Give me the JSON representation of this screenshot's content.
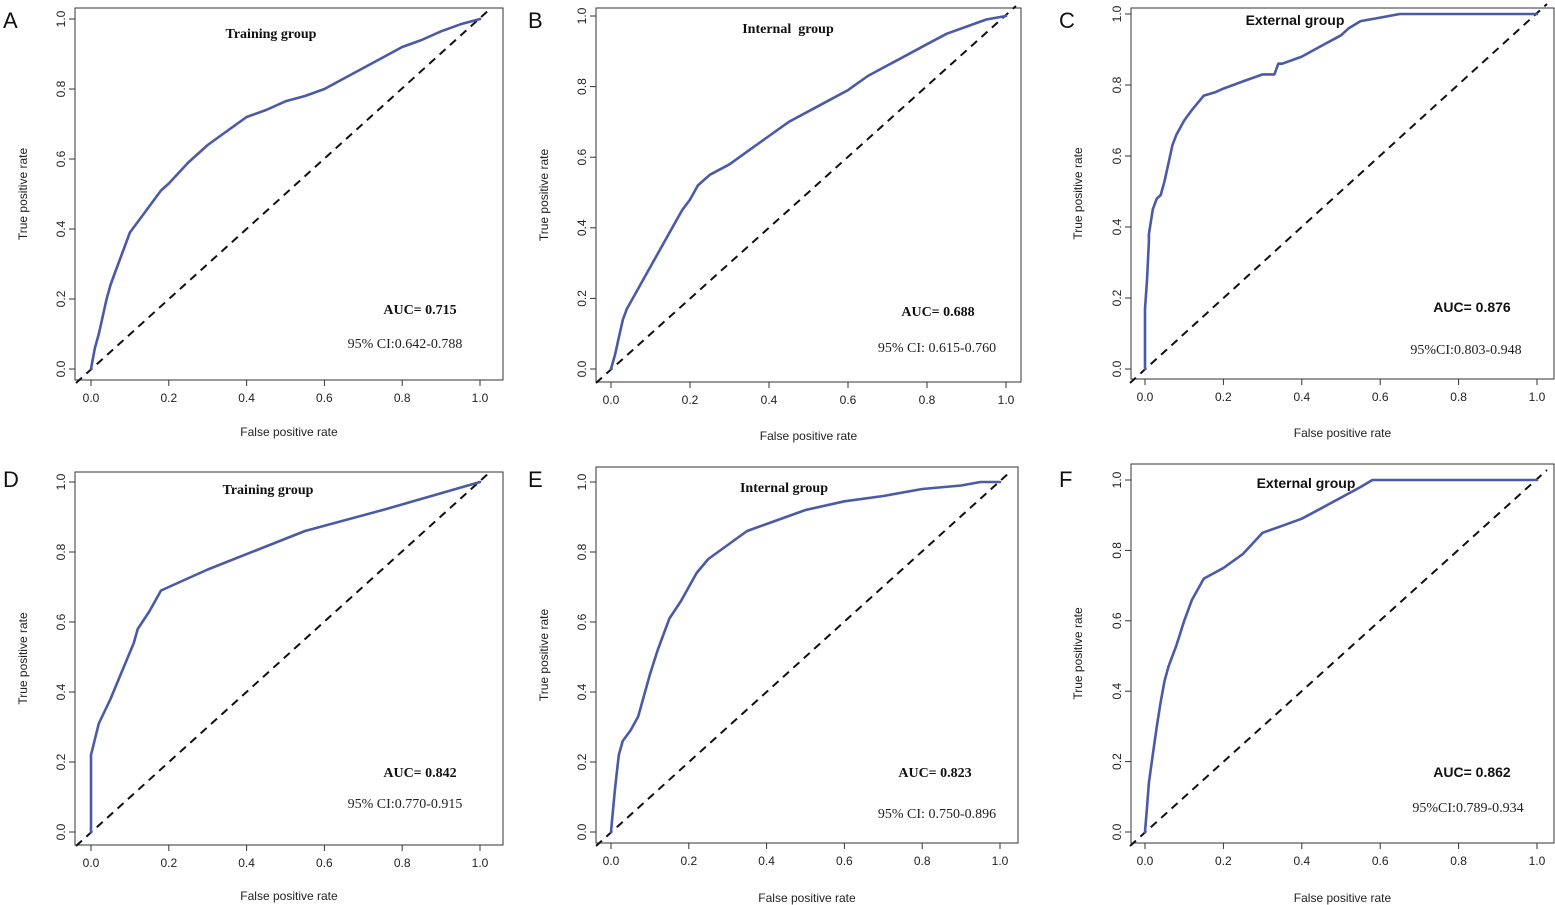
{
  "colors": {
    "roc": "#4a5aa8",
    "diagonal": "#111111",
    "frame": "#333333"
  },
  "chart_data": [
    {
      "type": "line",
      "panel": "A",
      "title": "Training group",
      "xlabel": "False positive rate",
      "ylabel": "True positive rate",
      "xlim": [
        0,
        1
      ],
      "ylim": [
        0,
        1
      ],
      "xticks": [
        "0.0",
        "0.2",
        "0.4",
        "0.6",
        "0.8",
        "1.0"
      ],
      "yticks": [
        "0.0",
        "0.2",
        "0.4",
        "0.6",
        "0.8",
        "1.0"
      ],
      "auc_label": "AUC=",
      "auc_value": "0.715",
      "ci": "95% CI:0.642-0.788",
      "series": [
        {
          "name": "ROC",
          "x": [
            0,
            0.005,
            0.01,
            0.02,
            0.03,
            0.04,
            0.05,
            0.06,
            0.07,
            0.08,
            0.09,
            0.1,
            0.12,
            0.14,
            0.16,
            0.18,
            0.2,
            0.25,
            0.3,
            0.35,
            0.4,
            0.45,
            0.5,
            0.55,
            0.6,
            0.65,
            0.7,
            0.75,
            0.8,
            0.85,
            0.9,
            0.95,
            1.0
          ],
          "y": [
            0,
            0.03,
            0.06,
            0.1,
            0.15,
            0.2,
            0.24,
            0.27,
            0.3,
            0.33,
            0.36,
            0.39,
            0.42,
            0.45,
            0.48,
            0.51,
            0.53,
            0.59,
            0.64,
            0.68,
            0.72,
            0.74,
            0.765,
            0.78,
            0.8,
            0.83,
            0.86,
            0.89,
            0.92,
            0.94,
            0.965,
            0.985,
            1.0
          ]
        },
        {
          "name": "Reference",
          "x": [
            0,
            1
          ],
          "y": [
            0,
            1
          ]
        }
      ]
    },
    {
      "type": "line",
      "panel": "B",
      "title": "Internal  group",
      "xlabel": "False positive rate",
      "ylabel": "True positive rate",
      "xlim": [
        0,
        1
      ],
      "ylim": [
        0,
        1
      ],
      "xticks": [
        "0.0",
        "0.2",
        "0.4",
        "0.6",
        "0.8",
        "1.0"
      ],
      "yticks": [
        "0.0",
        "0.2",
        "0.4",
        "0.6",
        "0.8",
        "1.0"
      ],
      "auc_label": "AUC=",
      "auc_value": "0.688",
      "ci": "95% CI: 0.615-0.760",
      "series": [
        {
          "name": "ROC",
          "x": [
            0,
            0.005,
            0.01,
            0.02,
            0.03,
            0.04,
            0.05,
            0.06,
            0.08,
            0.1,
            0.12,
            0.14,
            0.16,
            0.18,
            0.2,
            0.22,
            0.25,
            0.3,
            0.35,
            0.4,
            0.45,
            0.5,
            0.55,
            0.6,
            0.65,
            0.7,
            0.75,
            0.8,
            0.85,
            0.9,
            0.95,
            1.0
          ],
          "y": [
            0,
            0.02,
            0.04,
            0.09,
            0.14,
            0.17,
            0.19,
            0.21,
            0.25,
            0.29,
            0.33,
            0.37,
            0.41,
            0.45,
            0.48,
            0.52,
            0.55,
            0.58,
            0.62,
            0.66,
            0.7,
            0.73,
            0.76,
            0.79,
            0.83,
            0.86,
            0.89,
            0.92,
            0.95,
            0.97,
            0.99,
            1.0
          ]
        },
        {
          "name": "Reference",
          "x": [
            0,
            1
          ],
          "y": [
            0,
            1
          ]
        }
      ]
    },
    {
      "type": "line",
      "panel": "C",
      "title": "External group",
      "xlabel": "False positive rate",
      "ylabel": "True positive rate",
      "xlim": [
        0,
        1
      ],
      "ylim": [
        0,
        1
      ],
      "xticks": [
        "0.0",
        "0.2",
        "0.4",
        "0.6",
        "0.8",
        "1.0"
      ],
      "yticks": [
        "0.0",
        "0.2",
        "0.4",
        "0.6",
        "0.8",
        "1.0"
      ],
      "auc_label": "AUC=",
      "auc_value": "0.876",
      "ci": "95%CI:0.803-0.948",
      "series": [
        {
          "name": "ROC",
          "x": [
            0,
            0,
            0.005,
            0.01,
            0.01,
            0.02,
            0.03,
            0.04,
            0.05,
            0.06,
            0.07,
            0.08,
            0.09,
            0.1,
            0.12,
            0.15,
            0.18,
            0.2,
            0.25,
            0.3,
            0.33,
            0.34,
            0.35,
            0.4,
            0.45,
            0.5,
            0.52,
            0.55,
            0.6,
            0.65,
            0.7,
            0.8,
            0.9,
            1.0
          ],
          "y": [
            0,
            0.17,
            0.25,
            0.36,
            0.38,
            0.45,
            0.48,
            0.49,
            0.53,
            0.58,
            0.63,
            0.66,
            0.68,
            0.7,
            0.73,
            0.77,
            0.78,
            0.79,
            0.81,
            0.83,
            0.83,
            0.86,
            0.86,
            0.88,
            0.91,
            0.94,
            0.96,
            0.98,
            0.99,
            1.0,
            1.0,
            1.0,
            1.0,
            1.0
          ]
        },
        {
          "name": "Reference",
          "x": [
            0,
            1
          ],
          "y": [
            0,
            1
          ]
        }
      ]
    },
    {
      "type": "line",
      "panel": "D",
      "title": "Training group",
      "xlabel": "False positive rate",
      "ylabel": "True positive rate",
      "xlim": [
        0,
        1
      ],
      "ylim": [
        0,
        1
      ],
      "xticks": [
        "0.0",
        "0.2",
        "0.4",
        "0.6",
        "0.8",
        "1.0"
      ],
      "yticks": [
        "0.0",
        "0.2",
        "0.4",
        "0.6",
        "0.8",
        "1.0"
      ],
      "auc_label": "AUC=",
      "auc_value": "0.842",
      "ci": "95% CI:0.770-0.915",
      "series": [
        {
          "name": "ROC",
          "x": [
            0,
            0,
            0.02,
            0.05,
            0.08,
            0.11,
            0.12,
            0.15,
            0.18,
            0.3,
            0.55,
            0.75,
            1.0
          ],
          "y": [
            0,
            0.22,
            0.31,
            0.38,
            0.46,
            0.54,
            0.58,
            0.63,
            0.69,
            0.75,
            0.86,
            0.92,
            1.0
          ]
        },
        {
          "name": "Reference",
          "x": [
            0,
            1
          ],
          "y": [
            0,
            1
          ]
        }
      ]
    },
    {
      "type": "line",
      "panel": "E",
      "title": "Internal group",
      "xlabel": "False positive rate",
      "ylabel": "True positive rate",
      "xlim": [
        0,
        1
      ],
      "ylim": [
        0,
        1
      ],
      "xticks": [
        "0.0",
        "0.2",
        "0.4",
        "0.6",
        "0.8",
        "1.0"
      ],
      "yticks": [
        "0.0",
        "0.2",
        "0.4",
        "0.6",
        "0.8",
        "1.0"
      ],
      "auc_label": "AUC=",
      "auc_value": "0.823",
      "ci": "95% CI: 0.750-0.896",
      "series": [
        {
          "name": "ROC",
          "x": [
            0,
            0.005,
            0.01,
            0.015,
            0.02,
            0.03,
            0.05,
            0.07,
            0.08,
            0.1,
            0.12,
            0.15,
            0.18,
            0.2,
            0.22,
            0.25,
            0.3,
            0.35,
            0.4,
            0.5,
            0.6,
            0.7,
            0.8,
            0.9,
            0.95,
            1.0
          ],
          "y": [
            0,
            0.06,
            0.12,
            0.17,
            0.22,
            0.26,
            0.29,
            0.33,
            0.37,
            0.45,
            0.52,
            0.61,
            0.66,
            0.7,
            0.74,
            0.78,
            0.82,
            0.86,
            0.88,
            0.92,
            0.945,
            0.96,
            0.98,
            0.99,
            1.0,
            1.0
          ]
        },
        {
          "name": "Reference",
          "x": [
            0,
            1
          ],
          "y": [
            0,
            1
          ]
        }
      ]
    },
    {
      "type": "line",
      "panel": "F",
      "title": "External group",
      "xlabel": "False positive rate",
      "ylabel": "True positive rate",
      "xlim": [
        0,
        1
      ],
      "ylim": [
        0,
        1
      ],
      "xticks": [
        "0.0",
        "0.2",
        "0.4",
        "0.6",
        "0.8",
        "1.0"
      ],
      "yticks": [
        "0.0",
        "0.2",
        "0.4",
        "0.6",
        "0.8",
        "1.0"
      ],
      "auc_label": "AUC=",
      "auc_value": "0.862",
      "ci": "95%CI:0.789-0.934",
      "series": [
        {
          "name": "ROC",
          "x": [
            0,
            0.005,
            0.01,
            0.02,
            0.03,
            0.04,
            0.05,
            0.06,
            0.07,
            0.08,
            0.1,
            0.12,
            0.15,
            0.2,
            0.25,
            0.3,
            0.35,
            0.4,
            0.45,
            0.5,
            0.55,
            0.58,
            0.6,
            0.7,
            0.8,
            0.9,
            1.0
          ],
          "y": [
            0,
            0.07,
            0.14,
            0.22,
            0.3,
            0.37,
            0.43,
            0.47,
            0.5,
            0.53,
            0.6,
            0.66,
            0.72,
            0.75,
            0.79,
            0.85,
            0.87,
            0.89,
            0.92,
            0.95,
            0.98,
            1.0,
            1.0,
            1.0,
            1.0,
            1.0,
            1.0
          ]
        },
        {
          "name": "Reference",
          "x": [
            0,
            1
          ],
          "y": [
            0,
            1
          ]
        }
      ]
    }
  ]
}
